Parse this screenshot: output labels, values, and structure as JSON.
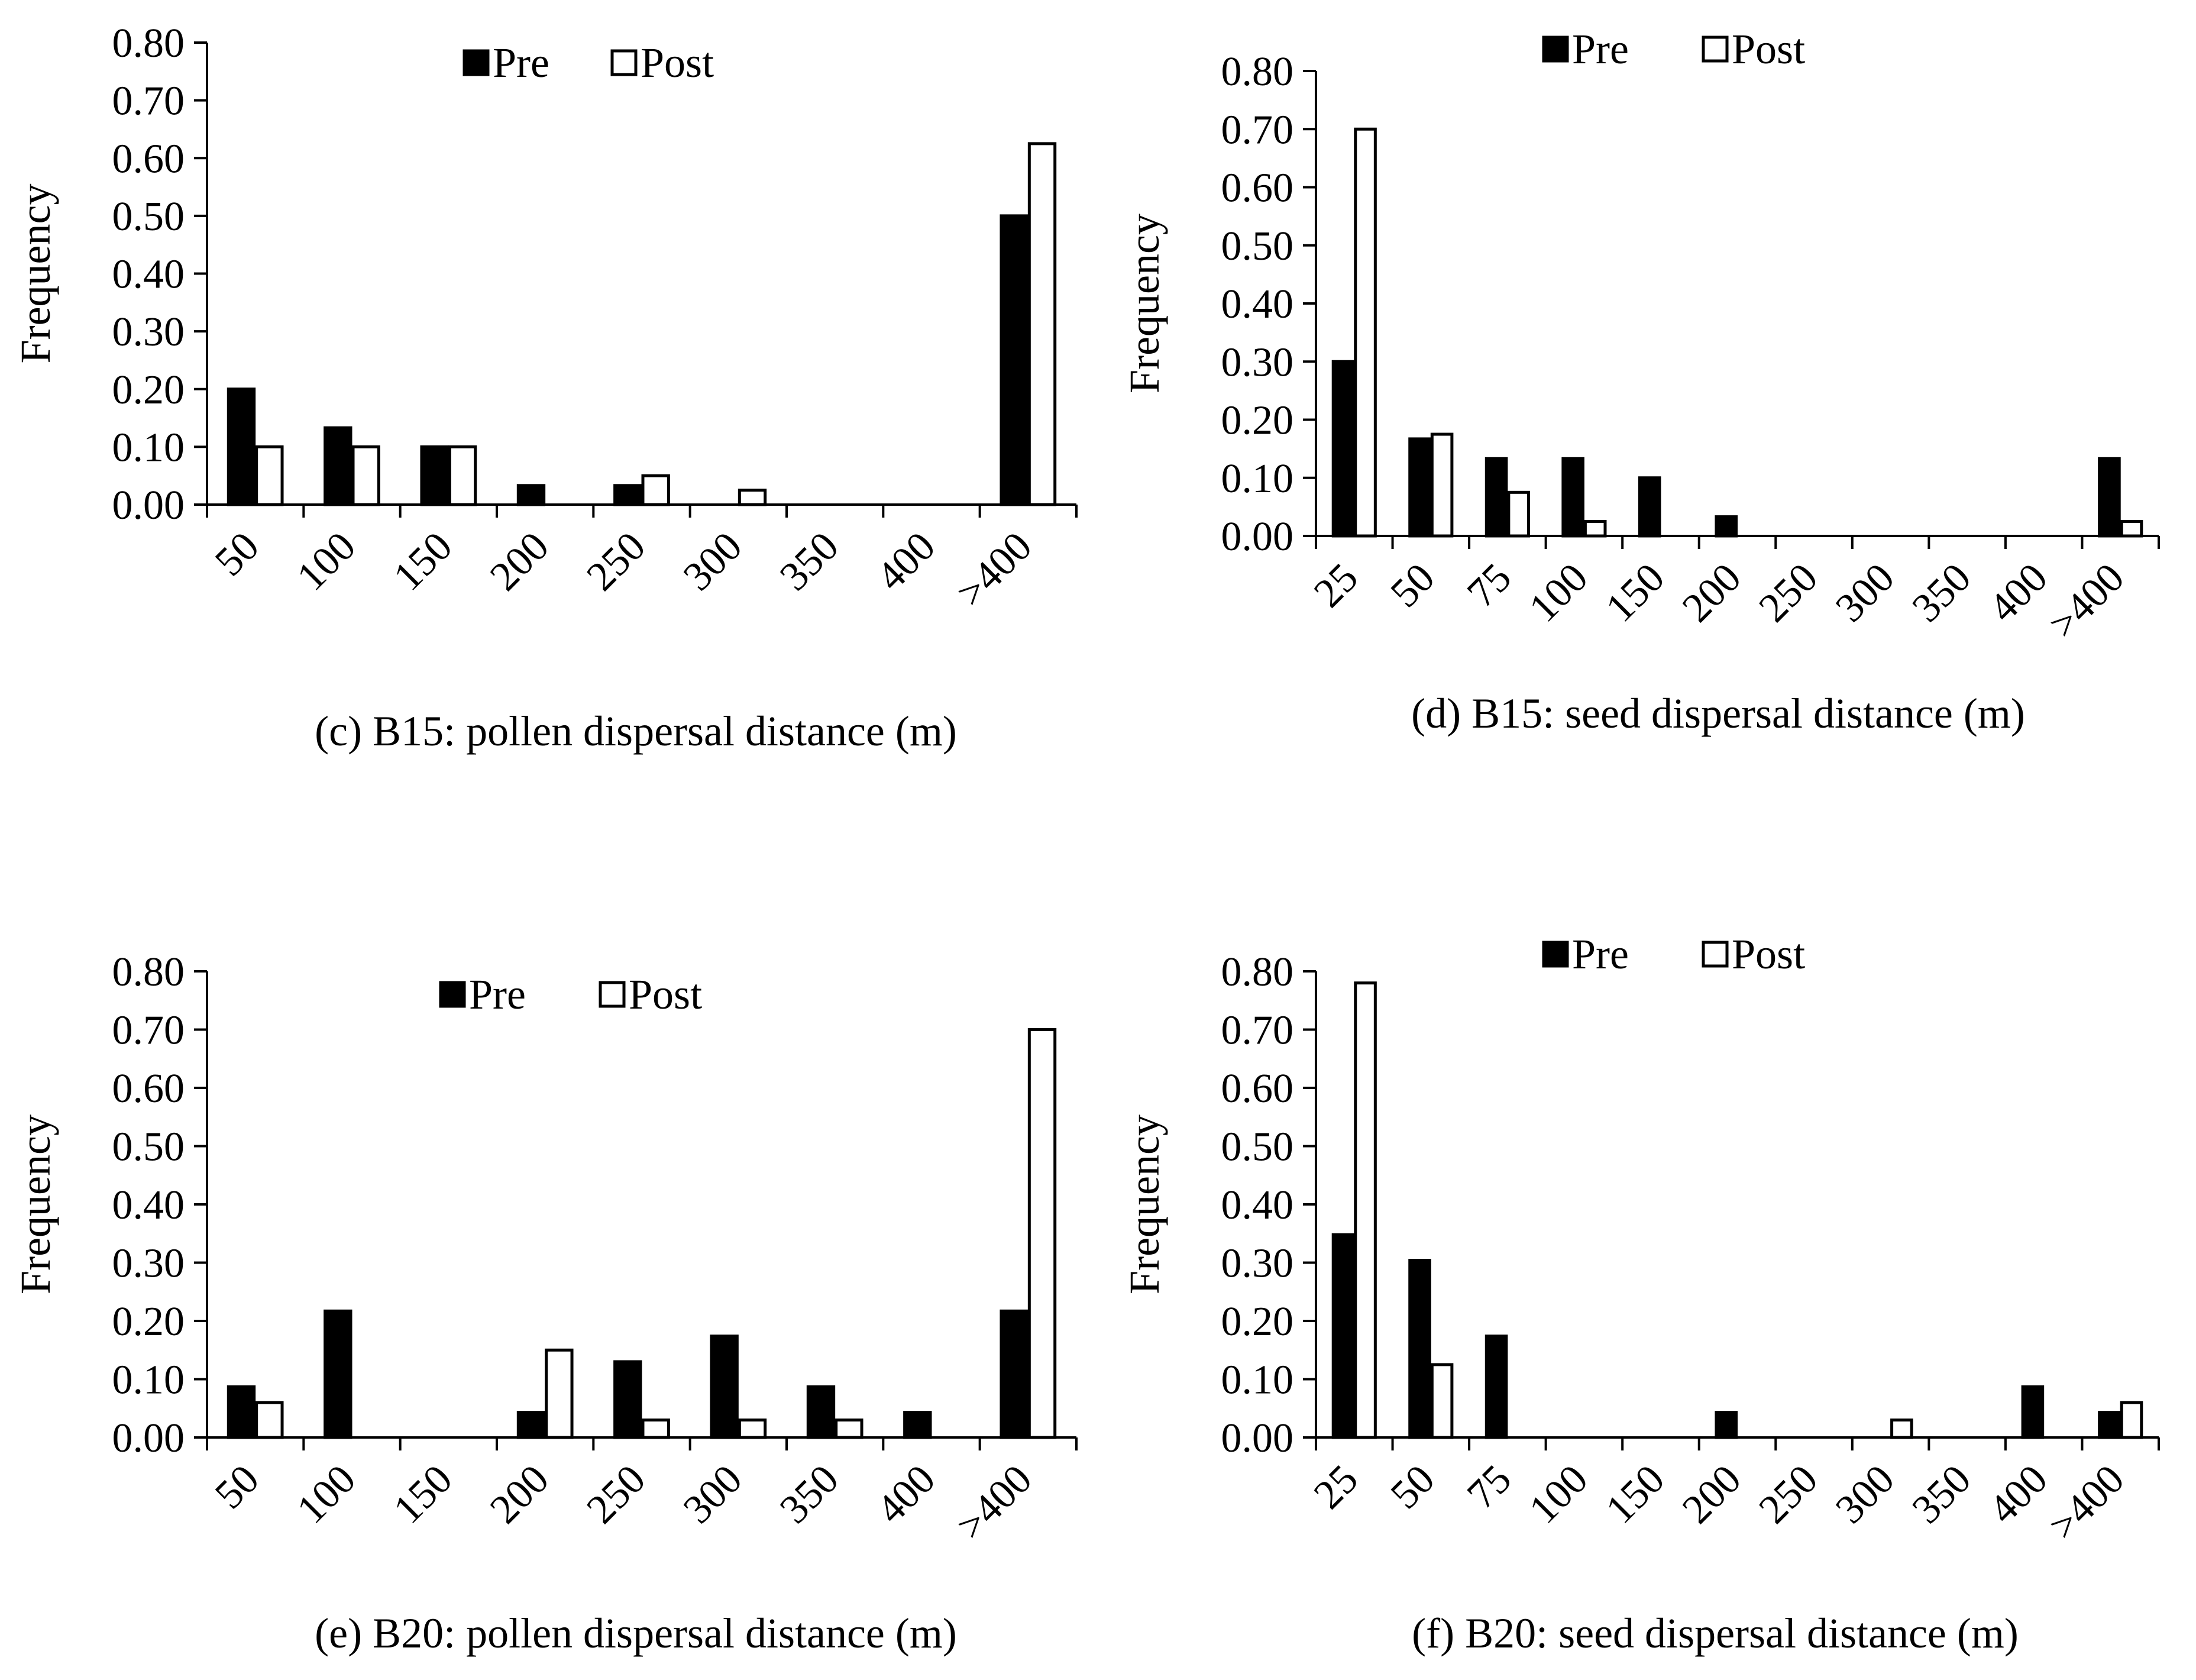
{
  "chart_data": [
    {
      "type": "bar",
      "id": "c",
      "caption": "(c) B15: pollen dispersal distance (m)",
      "ylabel": "Frequency",
      "xlabel": "",
      "ylim": [
        0,
        0.8
      ],
      "yticks": [
        "0.00",
        "0.10",
        "0.20",
        "0.30",
        "0.40",
        "0.50",
        "0.60",
        "0.70",
        "0.80"
      ],
      "categories": [
        "50",
        "100",
        "150",
        "200",
        "250",
        "300",
        "350",
        "400",
        ">400"
      ],
      "legend_position": "top-center",
      "series": [
        {
          "name": "Pre",
          "fill": "#000000",
          "values": [
            0.2,
            0.133,
            0.1,
            0.033,
            0.033,
            0,
            0,
            0,
            0.5
          ]
        },
        {
          "name": "Post",
          "fill": "#ffffff",
          "values": [
            0.1,
            0.1,
            0.1,
            0,
            0.05,
            0.025,
            0,
            0,
            0.625
          ]
        }
      ]
    },
    {
      "type": "bar",
      "id": "d",
      "caption": "(d) B15: seed dispersal distance (m)",
      "ylabel": "Frequency",
      "xlabel": "",
      "ylim": [
        0,
        0.8
      ],
      "yticks": [
        "0.00",
        "0.10",
        "0.20",
        "0.30",
        "0.40",
        "0.50",
        "0.60",
        "0.70",
        "0.80"
      ],
      "categories": [
        "25",
        "50",
        "75",
        "100",
        "150",
        "200",
        "250",
        "300",
        "350",
        "400",
        ">400"
      ],
      "legend_position": "top-center",
      "series": [
        {
          "name": "Pre",
          "fill": "#000000",
          "values": [
            0.3,
            0.167,
            0.133,
            0.133,
            0.1,
            0.033,
            0,
            0,
            0,
            0,
            0.133
          ]
        },
        {
          "name": "Post",
          "fill": "#ffffff",
          "values": [
            0.7,
            0.175,
            0.075,
            0.025,
            0,
            0,
            0,
            0,
            0,
            0,
            0.025
          ]
        }
      ]
    },
    {
      "type": "bar",
      "id": "e",
      "caption": "(e) B20: pollen dispersal distance (m)",
      "ylabel": "Frequency",
      "xlabel": "",
      "ylim": [
        0,
        0.8
      ],
      "yticks": [
        "0.00",
        "0.10",
        "0.20",
        "0.30",
        "0.40",
        "0.50",
        "0.60",
        "0.70",
        "0.80"
      ],
      "categories": [
        "50",
        "100",
        "150",
        "200",
        "250",
        "300",
        "350",
        "400",
        ">400"
      ],
      "legend_position": "top-center",
      "series": [
        {
          "name": "Pre",
          "fill": "#000000",
          "values": [
            0.087,
            0.217,
            0,
            0.043,
            0.13,
            0.174,
            0.087,
            0.043,
            0.217
          ]
        },
        {
          "name": "Post",
          "fill": "#ffffff",
          "values": [
            0.06,
            0,
            0,
            0.15,
            0.03,
            0.03,
            0.03,
            0,
            0.7
          ]
        }
      ]
    },
    {
      "type": "bar",
      "id": "f",
      "caption": "(f) B20: seed dispersal distance (m)",
      "ylabel": "Frequency",
      "xlabel": "",
      "ylim": [
        0,
        0.8
      ],
      "yticks": [
        "0.00",
        "0.10",
        "0.20",
        "0.30",
        "0.40",
        "0.50",
        "0.60",
        "0.70",
        "0.80"
      ],
      "categories": [
        "25",
        "50",
        "75",
        "100",
        "150",
        "200",
        "250",
        "300",
        "350",
        "400",
        ">400"
      ],
      "legend_position": "top-center",
      "series": [
        {
          "name": "Pre",
          "fill": "#000000",
          "values": [
            0.348,
            0.304,
            0.174,
            0,
            0,
            0.043,
            0,
            0,
            0,
            0.087,
            0.043
          ]
        },
        {
          "name": "Post",
          "fill": "#ffffff",
          "values": [
            0.78,
            0.125,
            0,
            0,
            0,
            0,
            0,
            0.03,
            0,
            0,
            0.06
          ]
        }
      ]
    }
  ]
}
